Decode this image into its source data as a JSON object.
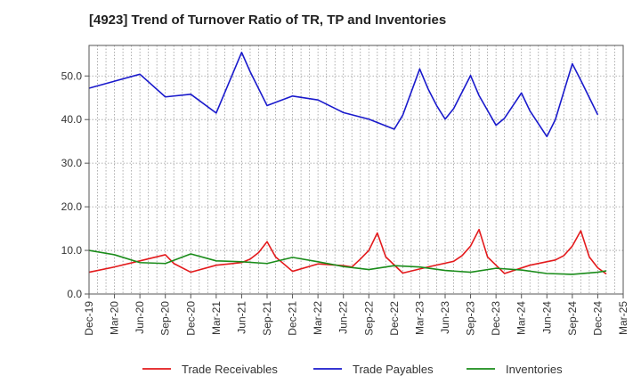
{
  "chart_data": {
    "type": "line",
    "title": "[4923]  Trend of Turnover Ratio of TR, TP and Inventories",
    "xlabel": "",
    "ylabel": "",
    "ylim": [
      0,
      57
    ],
    "yticks": [
      0,
      10,
      20,
      30,
      40,
      50
    ],
    "ytick_labels": [
      "0.0",
      "10.0",
      "20.0",
      "30.0",
      "40.0",
      "50.0"
    ],
    "x_tick_labels": [
      "Dec-19",
      "Mar-20",
      "Jun-20",
      "Sep-20",
      "Dec-20",
      "Mar-21",
      "Jun-21",
      "Sep-21",
      "Dec-21",
      "Mar-22",
      "Jun-22",
      "Sep-22",
      "Dec-22",
      "Mar-23",
      "Jun-23",
      "Sep-23",
      "Dec-23",
      "Mar-24",
      "Jun-24",
      "Sep-24",
      "Dec-24",
      "Mar-25"
    ],
    "grid": true,
    "legend_position": "bottom",
    "series": [
      {
        "name": "Trade Receivables",
        "color": "#e31a1c",
        "points": [
          [
            0,
            5.0
          ],
          [
            3,
            6.2
          ],
          [
            6,
            7.6
          ],
          [
            9,
            9.0
          ],
          [
            10,
            7.0
          ],
          [
            12,
            5.0
          ],
          [
            15,
            6.6
          ],
          [
            18,
            7.2
          ],
          [
            19,
            8.0
          ],
          [
            20,
            9.5
          ],
          [
            21,
            12.0
          ],
          [
            22,
            8.5
          ],
          [
            24,
            5.2
          ],
          [
            27,
            6.9
          ],
          [
            30,
            6.5
          ],
          [
            31,
            6.2
          ],
          [
            32,
            8.0
          ],
          [
            33,
            10.0
          ],
          [
            34,
            14.0
          ],
          [
            35,
            8.5
          ],
          [
            37,
            4.8
          ],
          [
            40,
            6.2
          ],
          [
            43,
            7.5
          ],
          [
            44,
            8.8
          ],
          [
            45,
            11.0
          ],
          [
            46,
            14.8
          ],
          [
            47,
            8.5
          ],
          [
            49,
            4.7
          ],
          [
            52,
            6.6
          ],
          [
            55,
            7.8
          ],
          [
            56,
            8.8
          ],
          [
            57,
            11.0
          ],
          [
            58,
            14.5
          ],
          [
            59,
            8.5
          ],
          [
            60,
            6.0
          ],
          [
            61,
            4.6
          ]
        ]
      },
      {
        "name": "Trade Payables",
        "color": "#1a1acc",
        "points": [
          [
            0,
            47.2
          ],
          [
            3,
            48.8
          ],
          [
            6,
            50.4
          ],
          [
            9,
            45.2
          ],
          [
            12,
            45.8
          ],
          [
            15,
            41.5
          ],
          [
            18,
            55.4
          ],
          [
            19,
            51.0
          ],
          [
            21,
            43.2
          ],
          [
            24,
            45.4
          ],
          [
            27,
            44.5
          ],
          [
            30,
            41.6
          ],
          [
            33,
            40.1
          ],
          [
            36,
            37.8
          ],
          [
            37,
            41.0
          ],
          [
            39,
            51.6
          ],
          [
            40,
            47.0
          ],
          [
            41,
            43.2
          ],
          [
            42,
            40.1
          ],
          [
            43,
            42.5
          ],
          [
            45,
            50.1
          ],
          [
            46,
            45.5
          ],
          [
            48,
            38.7
          ],
          [
            49,
            40.3
          ],
          [
            51,
            46.1
          ],
          [
            52,
            42.0
          ],
          [
            54,
            36.1
          ],
          [
            55,
            40.0
          ],
          [
            57,
            52.8
          ],
          [
            58,
            49.0
          ],
          [
            60,
            41.1
          ]
        ]
      },
      {
        "name": "Inventories",
        "color": "#1a8c1a",
        "points": [
          [
            0,
            10.0
          ],
          [
            3,
            9.0
          ],
          [
            6,
            7.2
          ],
          [
            9,
            7.0
          ],
          [
            12,
            9.2
          ],
          [
            15,
            7.6
          ],
          [
            18,
            7.4
          ],
          [
            21,
            7.0
          ],
          [
            24,
            8.4
          ],
          [
            27,
            7.4
          ],
          [
            30,
            6.3
          ],
          [
            33,
            5.6
          ],
          [
            36,
            6.5
          ],
          [
            39,
            6.2
          ],
          [
            42,
            5.4
          ],
          [
            45,
            5.0
          ],
          [
            48,
            5.9
          ],
          [
            51,
            5.5
          ],
          [
            54,
            4.7
          ],
          [
            57,
            4.5
          ],
          [
            60,
            5.0
          ],
          [
            61,
            5.3
          ]
        ]
      }
    ]
  }
}
